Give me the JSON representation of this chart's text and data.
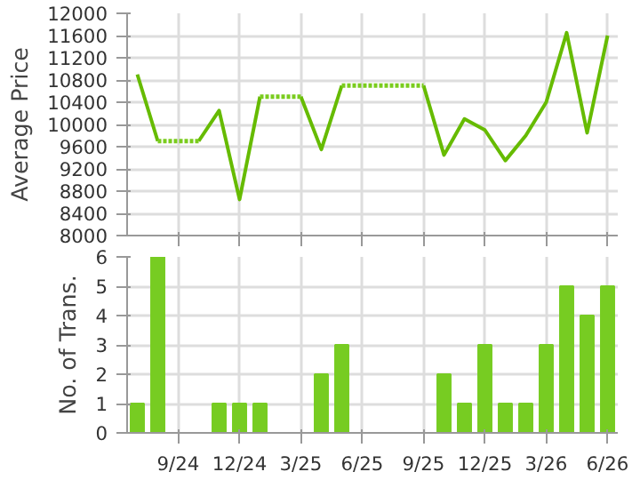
{
  "chart_data": [
    {
      "type": "line",
      "ylabel": "Average Price",
      "categories": [
        null,
        null,
        null,
        null,
        null,
        null,
        null,
        null,
        null,
        null,
        null,
        null,
        null,
        null,
        null,
        null,
        null,
        null,
        null,
        null,
        null,
        null,
        null,
        null
      ],
      "series": [
        {
          "color": "#66bb00",
          "line_style": "solid",
          "values": [
            10900,
            9700,
            null,
            9700,
            10250,
            8650,
            10500,
            null,
            10500,
            9550,
            10700,
            null,
            null,
            null,
            10700,
            9450,
            10100,
            9900,
            9350,
            9800,
            10400,
            11650,
            9850,
            11600
          ]
        },
        {
          "color": "#7acc1e",
          "line_style": "dotted",
          "values": [
            null,
            9700,
            9700,
            9700,
            null,
            null,
            10500,
            10500,
            10500,
            null,
            10700,
            10700,
            10700,
            10700,
            10700,
            null,
            null,
            null,
            null,
            null,
            null,
            null,
            null,
            null
          ]
        }
      ],
      "ylim": [
        8000,
        12000
      ],
      "yticks": [
        8000,
        8400,
        8800,
        9200,
        9600,
        10000,
        10400,
        10800,
        11200,
        11600,
        12000
      ],
      "grid": true,
      "tick_labels": "y",
      "marker": "none"
    },
    {
      "type": "bar",
      "ylabel": "No. of Trans.",
      "categories": [
        null,
        null,
        "9/24",
        null,
        null,
        "12/24",
        null,
        null,
        "3/25",
        null,
        null,
        "6/25",
        null,
        null,
        "9/25",
        null,
        null,
        "12/25",
        null,
        null,
        "3/26",
        null,
        null,
        "6/26"
      ],
      "values": [
        1,
        6,
        0,
        0,
        1,
        1,
        1,
        0,
        0,
        2,
        3,
        0,
        0,
        0,
        0,
        2,
        1,
        3,
        1,
        1,
        3,
        5,
        4,
        5
      ],
      "color": "#77cc22",
      "ylim": [
        0,
        6
      ],
      "yticks": [
        0,
        1,
        2,
        3,
        4,
        5,
        6
      ],
      "grid": true
    }
  ]
}
